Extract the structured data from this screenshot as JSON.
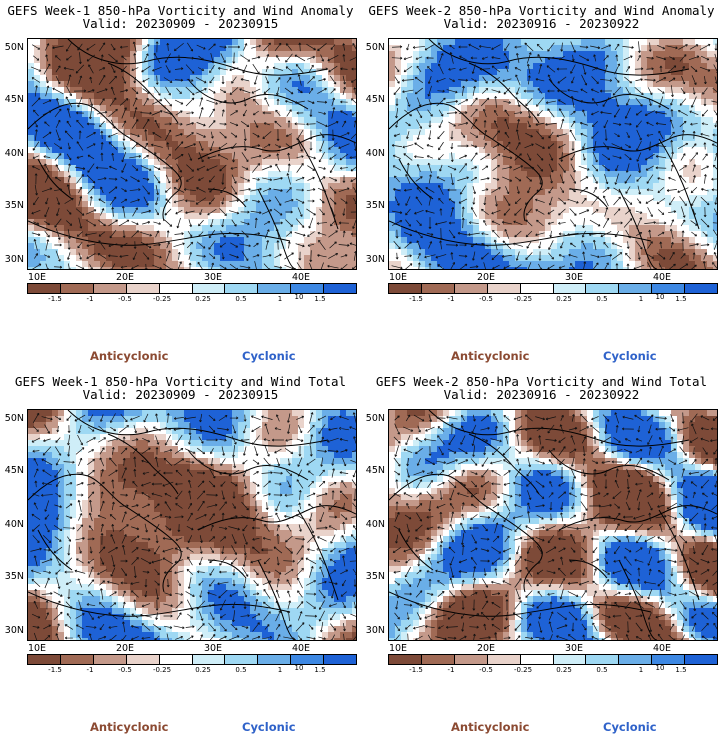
{
  "panels": [
    {
      "title_line1": "GEFS Week-1 850-hPa Vorticity and Wind Anomaly",
      "title_line2": "Valid: 20230909 - 20230915",
      "seed": 3,
      "bias": -0.05
    },
    {
      "title_line1": "GEFS Week-2 850-hPa Vorticity and Wind Anomaly",
      "title_line2": "Valid: 20230916 - 20230922",
      "seed": 7,
      "bias": 0.35
    },
    {
      "title_line1": "GEFS Week-1 850-hPa Vorticity and Wind Total",
      "title_line2": "Valid: 20230909 - 20230915",
      "seed": 11,
      "bias": -0.1
    },
    {
      "title_line1": "GEFS Week-2 850-hPa Vorticity and Wind Total",
      "title_line2": "Valid: 20230916 - 20230922",
      "seed": 5,
      "bias": -0.05
    }
  ],
  "lat_labels": [
    "50N",
    "45N",
    "40N",
    "35N",
    "30N"
  ],
  "lon_labels": [
    "10E",
    "20E",
    "30E",
    "40E"
  ],
  "colorbar": {
    "colors": [
      "#7d4a38",
      "#a06a55",
      "#c4998a",
      "#e9d3cb",
      "#ffffff",
      "#cfeef8",
      "#9ed8f3",
      "#6aaee8",
      "#3d88e3",
      "#1e62d6"
    ],
    "labels": [
      "-1.5",
      "-1",
      "-0.5",
      "-0.25",
      "0.25",
      "0.5",
      "1",
      "1.5"
    ],
    "unit": "10"
  },
  "legend": {
    "anticyclonic": "Anticyclonic",
    "cyclonic": "Cyclonic"
  },
  "colors": {
    "anticyclonic": "#8b4a32",
    "cyclonic": "#2f62c9"
  }
}
